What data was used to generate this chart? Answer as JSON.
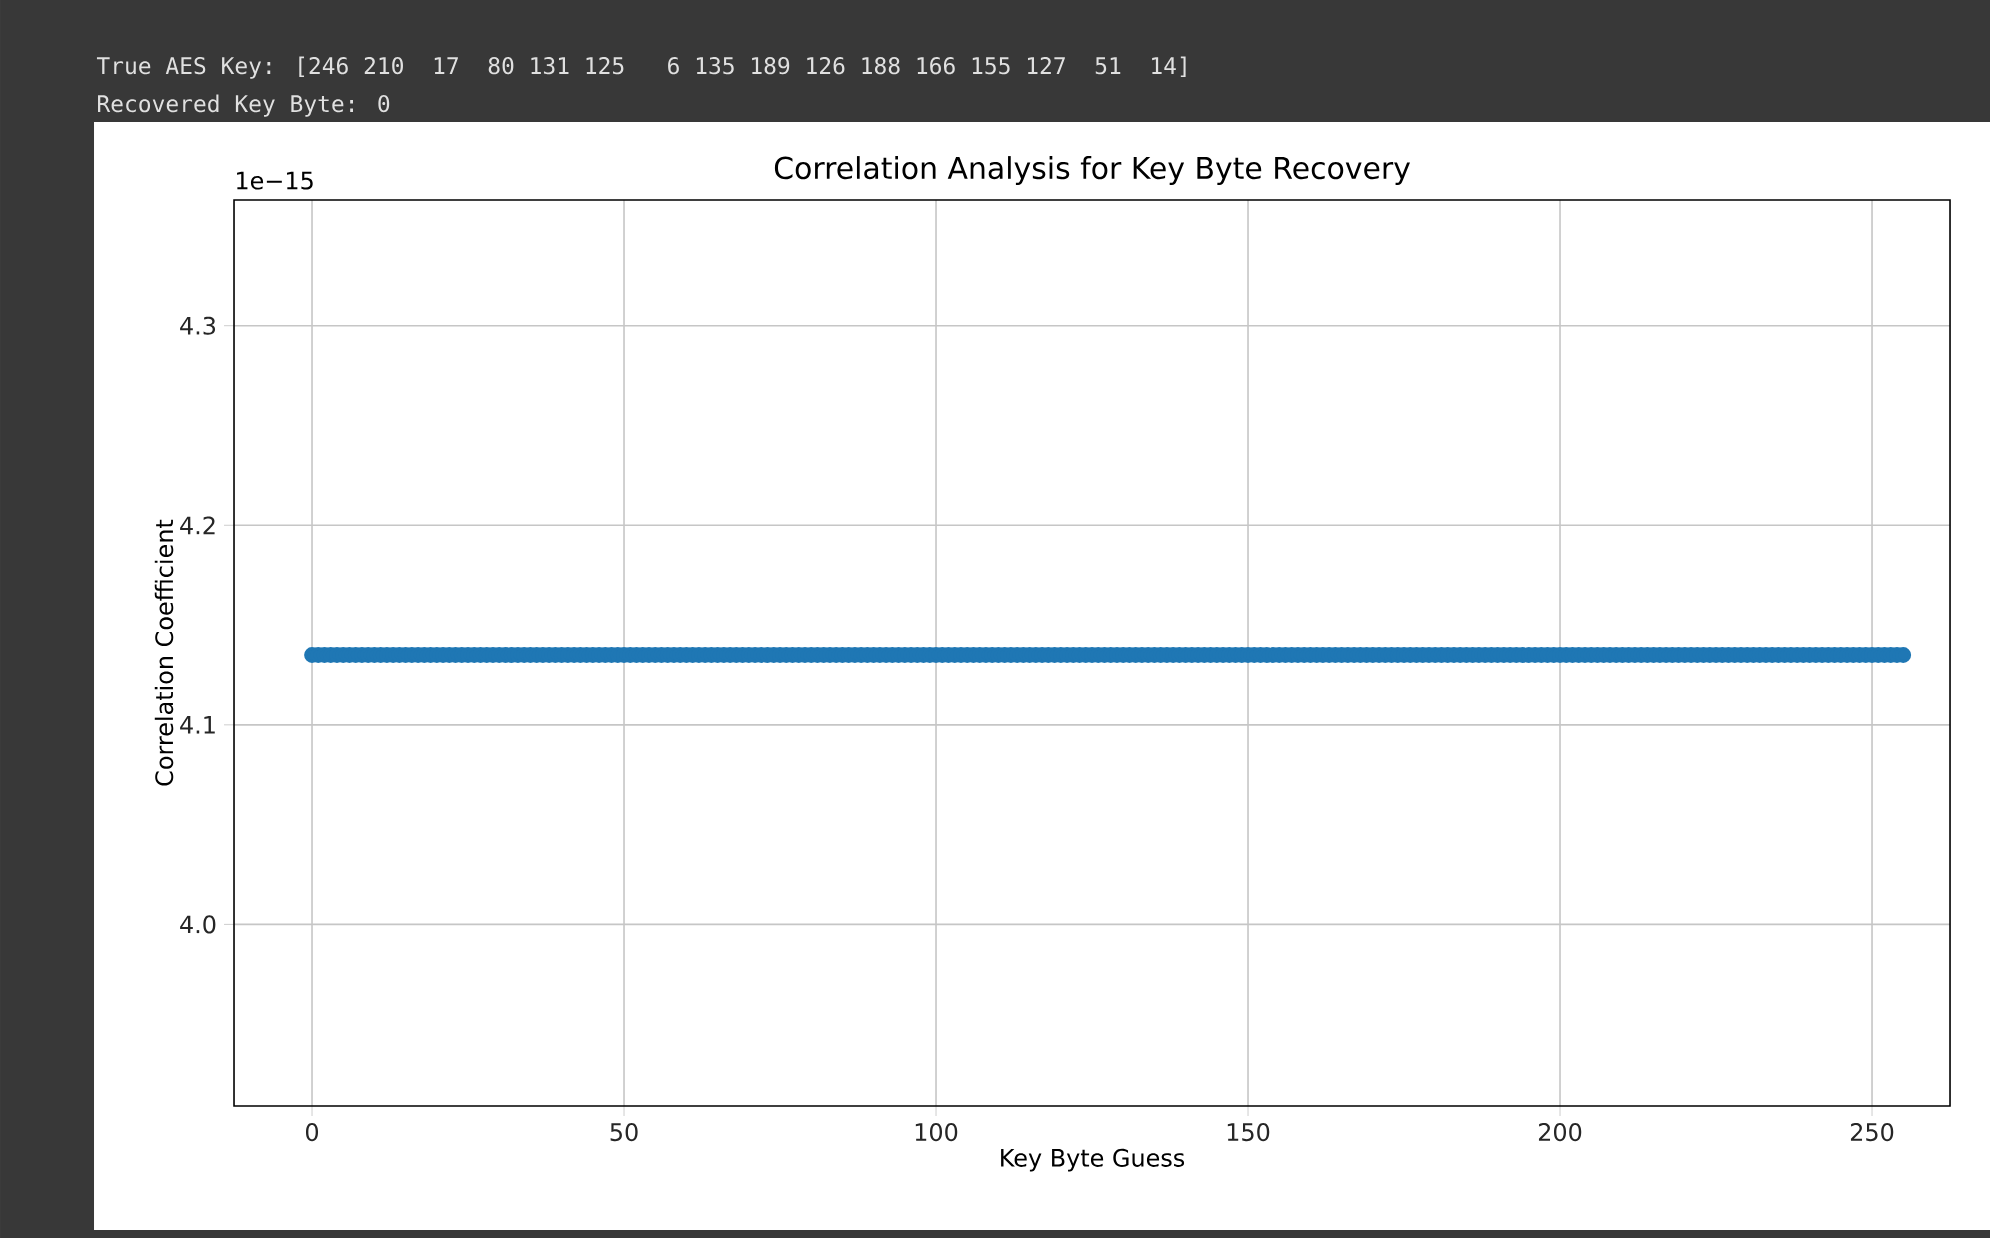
{
  "chart_data": {
    "type": "scatter",
    "title": "Correlation Analysis for Key Byte Recovery",
    "xlabel": "Key Byte Guess",
    "ylabel": "Correlation Coefficient",
    "annotations": [
      "True AES Key: [246 210  17  80 131 125   6 135 189 126 188 166 155 127  51  14]",
      "Recovered Key Byte: 0",
      "1e−15"
    ],
    "xlim": [
      -12.5,
      262.5
    ],
    "xticks": [
      0,
      50,
      100,
      150,
      200,
      250
    ],
    "ylim": [
      3.909,
      4.363
    ],
    "yticks": [
      {
        "value": 4.0,
        "label": "4.0"
      },
      4.1,
      4.2,
      4.3
    ],
    "grid": true,
    "x": [
      0,
      1,
      2,
      3,
      4,
      5,
      6,
      7,
      8,
      9,
      10,
      11,
      12,
      13,
      14,
      15,
      16,
      17,
      18,
      19,
      20,
      21,
      22,
      23,
      24,
      25,
      26,
      27,
      28,
      29,
      30,
      31,
      32,
      33,
      34,
      35,
      36,
      37,
      38,
      39,
      40,
      41,
      42,
      43,
      44,
      45,
      46,
      47,
      48,
      49,
      50,
      51,
      52,
      53,
      54,
      55,
      56,
      57,
      58,
      59,
      60,
      61,
      62,
      63,
      64,
      65,
      66,
      67,
      68,
      69,
      70,
      71,
      72,
      73,
      74,
      75,
      76,
      77,
      78,
      79,
      80,
      81,
      82,
      83,
      84,
      85,
      86,
      87,
      88,
      89,
      90,
      91,
      92,
      93,
      94,
      95,
      96,
      97,
      98,
      99,
      100,
      101,
      102,
      103,
      104,
      105,
      106,
      107,
      108,
      109,
      110,
      111,
      112,
      113,
      114,
      115,
      116,
      117,
      118,
      119,
      120,
      121,
      122,
      123,
      124,
      125,
      126,
      127,
      128,
      129,
      130,
      131,
      132,
      133,
      134,
      135,
      136,
      137,
      138,
      139,
      140,
      141,
      142,
      143,
      144,
      145,
      146,
      147,
      148,
      149,
      150,
      151,
      152,
      153,
      154,
      155,
      156,
      157,
      158,
      159,
      160,
      161,
      162,
      163,
      164,
      165,
      166,
      167,
      168,
      169,
      170,
      171,
      172,
      173,
      174,
      175,
      176,
      177,
      178,
      179,
      180,
      181,
      182,
      183,
      184,
      185,
      186,
      187,
      188,
      189,
      190,
      191,
      192,
      193,
      194,
      195,
      196,
      197,
      198,
      199,
      200,
      201,
      202,
      203,
      204,
      205,
      206,
      207,
      208,
      209,
      210,
      211,
      212,
      213,
      214,
      215,
      216,
      217,
      218,
      219,
      220,
      221,
      222,
      223,
      224,
      225,
      226,
      227,
      228,
      229,
      230,
      231,
      232,
      233,
      234,
      235,
      236,
      237,
      238,
      239,
      240,
      241,
      242,
      243,
      244,
      245,
      246,
      247,
      248,
      249,
      250,
      251,
      252,
      253,
      254,
      255
    ],
    "series": [
      {
        "color": "#1f77b4",
        "values": [
          4.135,
          4.135,
          4.135,
          4.135,
          4.135,
          4.135,
          4.135,
          4.135,
          4.135,
          4.135,
          4.135,
          4.135,
          4.135,
          4.135,
          4.135,
          4.135,
          4.135,
          4.135,
          4.135,
          4.135,
          4.135,
          4.135,
          4.135,
          4.135,
          4.135,
          4.135,
          4.135,
          4.135,
          4.135,
          4.135,
          4.135,
          4.135,
          4.135,
          4.135,
          4.135,
          4.135,
          4.135,
          4.135,
          4.135,
          4.135,
          4.135,
          4.135,
          4.135,
          4.135,
          4.135,
          4.135,
          4.135,
          4.135,
          4.135,
          4.135,
          4.135,
          4.135,
          4.135,
          4.135,
          4.135,
          4.135,
          4.135,
          4.135,
          4.135,
          4.135,
          4.135,
          4.135,
          4.135,
          4.135,
          4.135,
          4.135,
          4.135,
          4.135,
          4.135,
          4.135,
          4.135,
          4.135,
          4.135,
          4.135,
          4.135,
          4.135,
          4.135,
          4.135,
          4.135,
          4.135,
          4.135,
          4.135,
          4.135,
          4.135,
          4.135,
          4.135,
          4.135,
          4.135,
          4.135,
          4.135,
          4.135,
          4.135,
          4.135,
          4.135,
          4.135,
          4.135,
          4.135,
          4.135,
          4.135,
          4.135,
          4.135,
          4.135,
          4.135,
          4.135,
          4.135,
          4.135,
          4.135,
          4.135,
          4.135,
          4.135,
          4.135,
          4.135,
          4.135,
          4.135,
          4.135,
          4.135,
          4.135,
          4.135,
          4.135,
          4.135,
          4.135,
          4.135,
          4.135,
          4.135,
          4.135,
          4.135,
          4.135,
          4.135,
          4.135,
          4.135,
          4.135,
          4.135,
          4.135,
          4.135,
          4.135,
          4.135,
          4.135,
          4.135,
          4.135,
          4.135,
          4.135,
          4.135,
          4.135,
          4.135,
          4.135,
          4.135,
          4.135,
          4.135,
          4.135,
          4.135,
          4.135,
          4.135,
          4.135,
          4.135,
          4.135,
          4.135,
          4.135,
          4.135,
          4.135,
          4.135,
          4.135,
          4.135,
          4.135,
          4.135,
          4.135,
          4.135,
          4.135,
          4.135,
          4.135,
          4.135,
          4.135,
          4.135,
          4.135,
          4.135,
          4.135,
          4.135,
          4.135,
          4.135,
          4.135,
          4.135,
          4.135,
          4.135,
          4.135,
          4.135,
          4.135,
          4.135,
          4.135,
          4.135,
          4.135,
          4.135,
          4.135,
          4.135,
          4.135,
          4.135,
          4.135,
          4.135,
          4.135,
          4.135,
          4.135,
          4.135,
          4.135,
          4.135,
          4.135,
          4.135,
          4.135,
          4.135,
          4.135,
          4.135,
          4.135,
          4.135,
          4.135,
          4.135,
          4.135,
          4.135,
          4.135,
          4.135,
          4.135,
          4.135,
          4.135,
          4.135,
          4.135,
          4.135,
          4.135,
          4.135,
          4.135,
          4.135,
          4.135,
          4.135,
          4.135,
          4.135,
          4.135,
          4.135,
          4.135,
          4.135,
          4.135,
          4.135,
          4.135,
          4.135,
          4.135,
          4.135,
          4.135,
          4.135,
          4.135,
          4.135,
          4.135,
          4.135,
          4.135,
          4.135,
          4.135,
          4.135,
          4.135,
          4.135,
          4.135,
          4.135,
          4.135,
          4.135
        ]
      }
    ]
  }
}
